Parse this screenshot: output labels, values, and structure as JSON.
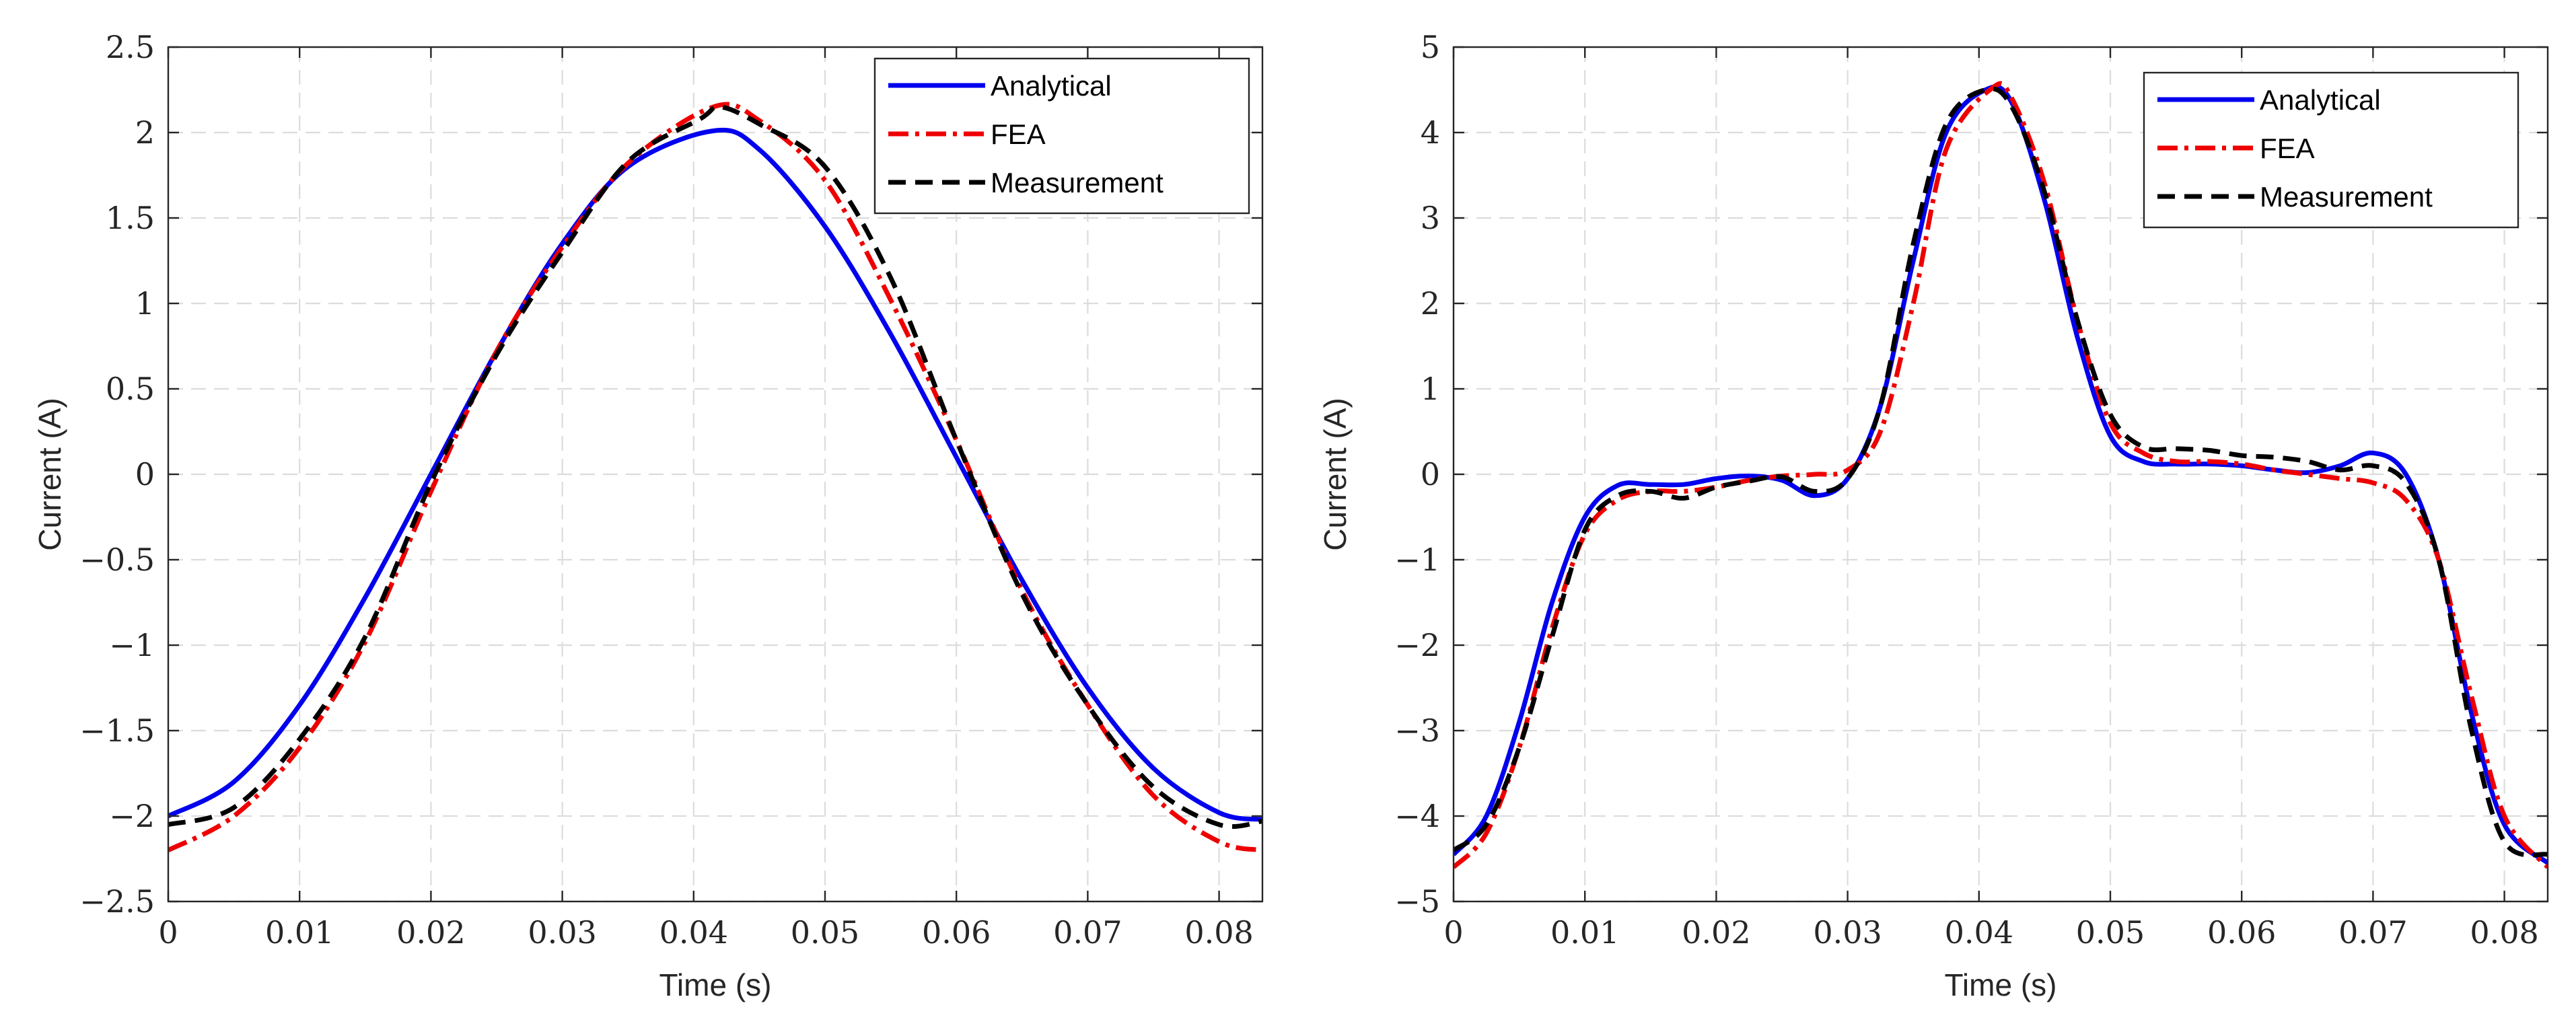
{
  "colors": {
    "analytical": "#0000ee",
    "fea": "#ee0000",
    "measurement": "#000000"
  },
  "chart_data": [
    {
      "type": "line",
      "title": "",
      "xlabel": "Time (s)",
      "ylabel": "Current (A)",
      "xlim": [
        0,
        0.0833
      ],
      "ylim": [
        -2.5,
        2.5
      ],
      "xticks": [
        0,
        0.01,
        0.02,
        0.03,
        0.04,
        0.05,
        0.06,
        0.07,
        0.08
      ],
      "xtick_labels": [
        "0",
        "0.01",
        "0.02",
        "0.03",
        "0.04",
        "0.05",
        "0.06",
        "0.07",
        "0.08"
      ],
      "yticks": [
        -2.5,
        -2,
        -1.5,
        -1,
        -0.5,
        0,
        0.5,
        1,
        1.5,
        2,
        2.5
      ],
      "ytick_labels": [
        "−2.5",
        "−2",
        "−1.5",
        "−1",
        "−0.5",
        "0",
        "0.5",
        "1",
        "1.5",
        "2",
        "2.5"
      ],
      "grid": true,
      "legend_position": "top-right",
      "series": [
        {
          "name": "Analytical",
          "style": "solid",
          "color": "#0000ee",
          "x": [
            0,
            0.005,
            0.01,
            0.015,
            0.02,
            0.025,
            0.03,
            0.035,
            0.0415,
            0.045,
            0.05,
            0.055,
            0.06,
            0.065,
            0.07,
            0.075,
            0.08,
            0.0833
          ],
          "y": [
            -2.0,
            -1.8,
            -1.35,
            -0.72,
            0.0,
            0.72,
            1.35,
            1.8,
            2.01,
            1.9,
            1.45,
            0.82,
            0.1,
            -0.62,
            -1.25,
            -1.72,
            -1.98,
            -2.02
          ]
        },
        {
          "name": "FEA",
          "style": "dashdot",
          "color": "#ee0000",
          "x": [
            0,
            0.005,
            0.01,
            0.015,
            0.02,
            0.025,
            0.03,
            0.035,
            0.0415,
            0.045,
            0.05,
            0.055,
            0.06,
            0.065,
            0.07,
            0.075,
            0.08,
            0.0833
          ],
          "y": [
            -2.2,
            -2.0,
            -1.6,
            -0.98,
            -0.1,
            0.72,
            1.33,
            1.82,
            2.15,
            2.07,
            1.72,
            1.02,
            0.2,
            -0.68,
            -1.35,
            -1.88,
            -2.15,
            -2.2
          ]
        },
        {
          "name": "Measurement",
          "style": "dashed",
          "color": "#000000",
          "x": [
            0,
            0.005,
            0.01,
            0.015,
            0.02,
            0.025,
            0.03,
            0.035,
            0.0405,
            0.042,
            0.045,
            0.05,
            0.055,
            0.06,
            0.065,
            0.07,
            0.075,
            0.08,
            0.0833
          ],
          "y": [
            -2.05,
            -1.95,
            -1.55,
            -0.95,
            -0.05,
            0.7,
            1.3,
            1.83,
            2.08,
            2.15,
            2.05,
            1.8,
            1.15,
            0.2,
            -0.7,
            -1.35,
            -1.83,
            -2.05,
            -2.03
          ]
        }
      ]
    },
    {
      "type": "line",
      "title": "",
      "xlabel": "Time (s)",
      "ylabel": "Current (A)",
      "xlim": [
        0,
        0.0833
      ],
      "ylim": [
        -5,
        5
      ],
      "xticks": [
        0,
        0.01,
        0.02,
        0.03,
        0.04,
        0.05,
        0.06,
        0.07,
        0.08
      ],
      "xtick_labels": [
        "0",
        "0.01",
        "0.02",
        "0.03",
        "0.04",
        "0.05",
        "0.06",
        "0.07",
        "0.08"
      ],
      "yticks": [
        -5,
        -4,
        -3,
        -2,
        -1,
        0,
        1,
        2,
        3,
        4,
        5
      ],
      "ytick_labels": [
        "−5",
        "−4",
        "−3",
        "−2",
        "−1",
        "0",
        "1",
        "2",
        "3",
        "4",
        "5"
      ],
      "grid": true,
      "legend_position": "top-right",
      "series": [
        {
          "name": "Analytical",
          "style": "solid",
          "color": "#0000ee",
          "x": [
            0,
            0.0025,
            0.005,
            0.0075,
            0.01,
            0.0125,
            0.015,
            0.0175,
            0.02,
            0.0225,
            0.025,
            0.0275,
            0.03,
            0.0325,
            0.035,
            0.0375,
            0.0405,
            0.0425,
            0.045,
            0.0475,
            0.05,
            0.0525,
            0.055,
            0.0575,
            0.06,
            0.0625,
            0.065,
            0.0675,
            0.07,
            0.0725,
            0.075,
            0.0775,
            0.08,
            0.0833
          ],
          "y": [
            -4.45,
            -4.0,
            -2.9,
            -1.5,
            -0.5,
            -0.13,
            -0.12,
            -0.12,
            -0.05,
            -0.02,
            -0.07,
            -0.25,
            -0.05,
            0.8,
            2.5,
            4.0,
            4.5,
            4.35,
            3.2,
            1.6,
            0.45,
            0.15,
            0.12,
            0.12,
            0.1,
            0.05,
            0.02,
            0.1,
            0.25,
            0.0,
            -1.0,
            -2.8,
            -4.1,
            -4.55
          ]
        },
        {
          "name": "FEA",
          "style": "dashdot",
          "color": "#ee0000",
          "x": [
            0,
            0.0025,
            0.005,
            0.0075,
            0.01,
            0.0125,
            0.015,
            0.0175,
            0.02,
            0.0225,
            0.025,
            0.0275,
            0.03,
            0.0325,
            0.035,
            0.0375,
            0.041,
            0.0425,
            0.045,
            0.0475,
            0.05,
            0.0525,
            0.055,
            0.0575,
            0.06,
            0.0625,
            0.065,
            0.0675,
            0.07,
            0.0725,
            0.075,
            0.0775,
            0.08,
            0.0833
          ],
          "y": [
            -4.6,
            -4.2,
            -3.2,
            -1.8,
            -0.7,
            -0.3,
            -0.2,
            -0.2,
            -0.15,
            -0.07,
            -0.02,
            0.0,
            0.05,
            0.5,
            2.0,
            3.8,
            4.52,
            4.4,
            3.4,
            1.8,
            0.6,
            0.25,
            0.15,
            0.15,
            0.12,
            0.05,
            0.0,
            -0.05,
            -0.1,
            -0.3,
            -1.0,
            -2.6,
            -4.0,
            -4.6
          ]
        },
        {
          "name": "Measurement",
          "style": "dashed",
          "color": "#000000",
          "x": [
            0,
            0.0025,
            0.005,
            0.0075,
            0.01,
            0.0125,
            0.015,
            0.0175,
            0.02,
            0.0225,
            0.025,
            0.0275,
            0.03,
            0.0325,
            0.035,
            0.0375,
            0.0405,
            0.0425,
            0.045,
            0.0475,
            0.05,
            0.0525,
            0.055,
            0.0575,
            0.06,
            0.0625,
            0.065,
            0.0675,
            0.07,
            0.0725,
            0.075,
            0.0775,
            0.08,
            0.0833
          ],
          "y": [
            -4.4,
            -4.1,
            -3.2,
            -1.9,
            -0.65,
            -0.25,
            -0.2,
            -0.28,
            -0.15,
            -0.08,
            -0.03,
            -0.2,
            -0.05,
            0.8,
            2.7,
            4.1,
            4.5,
            4.3,
            3.3,
            1.8,
            0.7,
            0.32,
            0.3,
            0.28,
            0.22,
            0.2,
            0.15,
            0.05,
            0.1,
            -0.1,
            -1.0,
            -3.0,
            -4.3,
            -4.45
          ]
        }
      ]
    }
  ]
}
